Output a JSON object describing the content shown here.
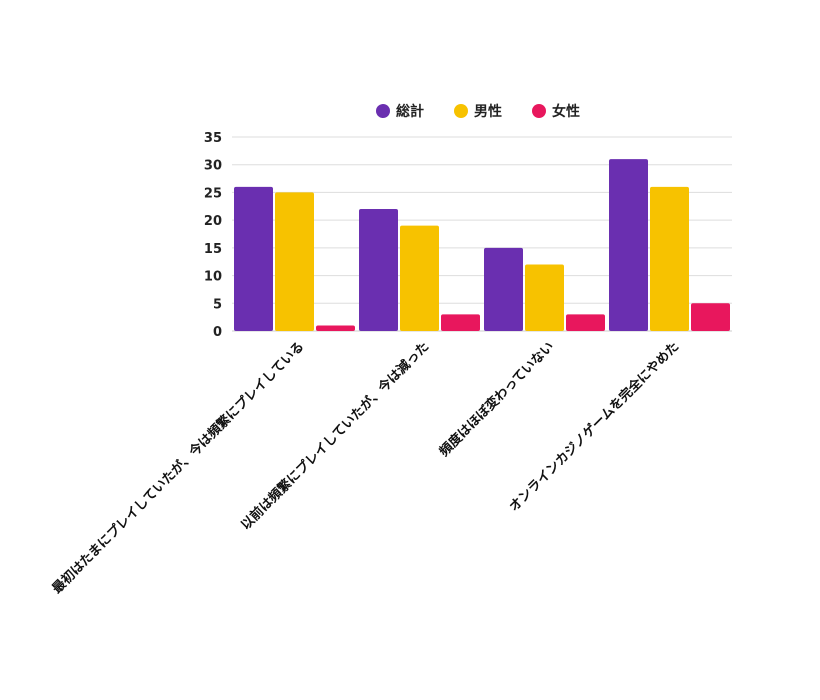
{
  "chart_data": {
    "type": "bar",
    "categories": [
      "最初はたまにプレイしていたが、今は頻繁にプレイしている",
      "以前は頻繁にプレイしていたが、今は減った",
      "頻度はほぼ変わっていない",
      "オンラインカジノゲームを完全にやめた"
    ],
    "series": [
      {
        "name": "総計",
        "color": "#6a2fb0",
        "values": [
          26,
          22,
          15,
          31
        ]
      },
      {
        "name": "男性",
        "color": "#f7c200",
        "values": [
          25,
          19,
          12,
          26
        ]
      },
      {
        "name": "女性",
        "color": "#e8175d",
        "values": [
          1,
          3,
          3,
          5
        ]
      }
    ],
    "ylim": [
      0,
      35
    ],
    "yticks": [
      0,
      5,
      10,
      15,
      20,
      25,
      30,
      35
    ],
    "grid": true,
    "legend": "top-center"
  }
}
